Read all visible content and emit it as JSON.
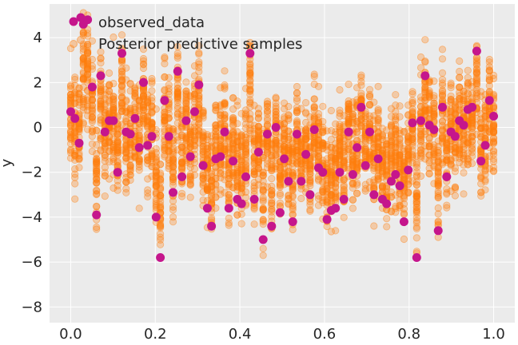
{
  "chart_data": {
    "type": "scatter",
    "title": "",
    "xlabel": "",
    "ylabel": "y",
    "xlim": [
      -0.05,
      1.05
    ],
    "ylim": [
      -8.7,
      5.5
    ],
    "xticks": [
      0.0,
      0.2,
      0.4,
      0.6,
      0.8,
      1.0
    ],
    "xtick_labels": [
      "0.0",
      "0.2",
      "0.4",
      "0.6",
      "0.8",
      "1.0"
    ],
    "yticks": [
      -8,
      -6,
      -4,
      -2,
      0,
      2,
      4
    ],
    "ytick_labels": [
      "−8",
      "−6",
      "−4",
      "−2",
      "0",
      "2",
      "4"
    ],
    "grid": true,
    "background_color": "#ebebeb",
    "legend_placement": "top-left",
    "series": [
      {
        "name": "observed_data",
        "color": "#c5168c",
        "x": [
          0.0,
          0.01,
          0.02,
          0.03,
          0.04,
          0.051,
          0.061,
          0.071,
          0.081,
          0.091,
          0.101,
          0.111,
          0.121,
          0.131,
          0.141,
          0.152,
          0.162,
          0.172,
          0.182,
          0.192,
          0.202,
          0.212,
          0.222,
          0.232,
          0.242,
          0.253,
          0.263,
          0.273,
          0.283,
          0.293,
          0.303,
          0.313,
          0.323,
          0.333,
          0.343,
          0.354,
          0.364,
          0.374,
          0.384,
          0.394,
          0.404,
          0.414,
          0.424,
          0.434,
          0.444,
          0.455,
          0.465,
          0.475,
          0.485,
          0.495,
          0.505,
          0.515,
          0.525,
          0.535,
          0.545,
          0.556,
          0.566,
          0.576,
          0.586,
          0.596,
          0.606,
          0.616,
          0.626,
          0.636,
          0.646,
          0.657,
          0.667,
          0.677,
          0.687,
          0.697,
          0.707,
          0.717,
          0.727,
          0.737,
          0.747,
          0.758,
          0.768,
          0.778,
          0.788,
          0.798,
          0.808,
          0.818,
          0.828,
          0.838,
          0.848,
          0.859,
          0.869,
          0.879,
          0.889,
          0.899,
          0.909,
          0.919,
          0.929,
          0.939,
          0.949,
          0.96,
          0.97,
          0.98,
          0.99,
          1.0
        ],
        "y": [
          0.7,
          0.4,
          -0.7,
          4.6,
          4.8,
          1.8,
          -3.9,
          2.3,
          -0.2,
          0.3,
          0.3,
          -2.0,
          3.3,
          -0.2,
          -0.3,
          0.4,
          -0.9,
          2.0,
          -0.8,
          -0.4,
          -4.0,
          -5.8,
          1.2,
          -0.4,
          -2.9,
          2.5,
          -2.2,
          0.3,
          -1.3,
          0.7,
          1.9,
          -1.7,
          -3.6,
          -4.4,
          -1.4,
          -1.3,
          -0.2,
          -3.6,
          -1.5,
          -3.2,
          -3.4,
          -2.2,
          3.3,
          -3.2,
          -1.1,
          -5.0,
          -0.3,
          -4.4,
          0.0,
          -3.8,
          -1.4,
          -2.4,
          -4.2,
          -0.3,
          -2.4,
          -1.2,
          -3.0,
          -0.1,
          -1.8,
          -2.0,
          -4.1,
          -3.7,
          -3.6,
          -2.0,
          -3.2,
          -0.2,
          -2.1,
          -0.9,
          0.9,
          -1.7,
          -0.2,
          -3.0,
          -1.4,
          -3.2,
          -3.4,
          -2.4,
          -2.1,
          -2.6,
          -4.2,
          -1.9,
          0.2,
          -5.8,
          0.3,
          2.3,
          0.1,
          -0.1,
          -4.6,
          0.9,
          -2.2,
          -0.2,
          -0.4,
          0.3,
          0.1,
          0.8,
          0.9,
          3.4,
          -1.5,
          -0.8,
          1.2,
          0.5
        ]
      },
      {
        "name": "Posterior predictive samples",
        "color": "#ff7f0e"
      }
    ]
  }
}
